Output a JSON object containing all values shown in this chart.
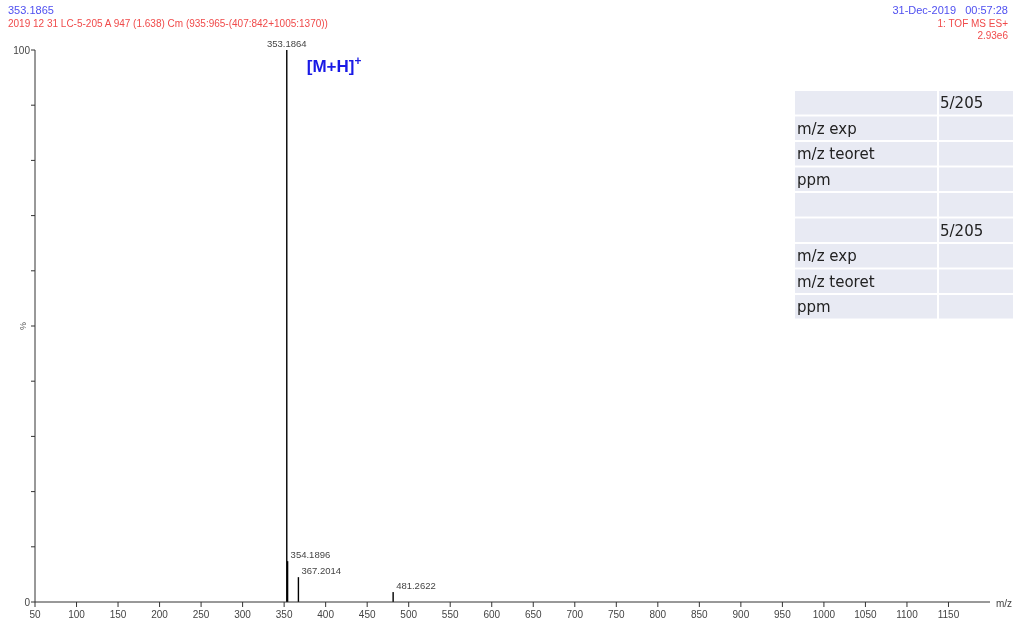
{
  "chart_data": {
    "type": "bar",
    "x": [
      353.1864,
      354.1896,
      367.2014,
      481.2622
    ],
    "values": [
      100,
      7.4,
      4.5,
      1.8
    ],
    "color": "#000000",
    "xlim": [
      50,
      1200
    ],
    "ylim": [
      0,
      100
    ],
    "xticks": [
      50,
      100,
      150,
      200,
      250,
      300,
      350,
      400,
      450,
      500,
      550,
      600,
      650,
      700,
      750,
      800,
      850,
      900,
      950,
      1000,
      1050,
      1100,
      1150
    ],
    "yticks": [
      0,
      {
        "value": 10,
        "label": null
      },
      {
        "value": 20,
        "label": null
      },
      {
        "value": 30,
        "label": null
      },
      {
        "value": 40,
        "label": null
      },
      {
        "value": 50,
        "label": null
      },
      {
        "value": 60,
        "label": null
      },
      {
        "value": 70,
        "label": null
      },
      {
        "value": 80,
        "label": null
      },
      {
        "value": 90,
        "label": null
      },
      100
    ],
    "xlabel": "m/z",
    "ylabel": "%",
    "grid": false,
    "title": "353.1865",
    "subtitle": "2019 12 31 LC-5-205 A 947 (1.638) Cm (935:965-(407:842+1005:1370))",
    "annotations": [
      "31-Dec-2019   00:57:28",
      "1: TOF MS ES+",
      "2.93e6",
      {
        "text": "[M+H]$^{+}$",
        "x": 353.1864,
        "y": 100
      },
      {
        "text": "353.1864",
        "x": 353.1864,
        "y": 100
      },
      {
        "text": "354.1896",
        "x": 354.1896,
        "y": 7.4
      },
      {
        "text": "367.2014",
        "x": 367.2014,
        "y": 4.5
      },
      {
        "text": "481.2622",
        "x": 481.2622,
        "y": 1.8
      },
      "5/205",
      "m/z exp",
      "m/z teoret",
      "ppm",
      "5/205",
      "m/z exp",
      "m/z teoret",
      "ppm"
    ]
  }
}
